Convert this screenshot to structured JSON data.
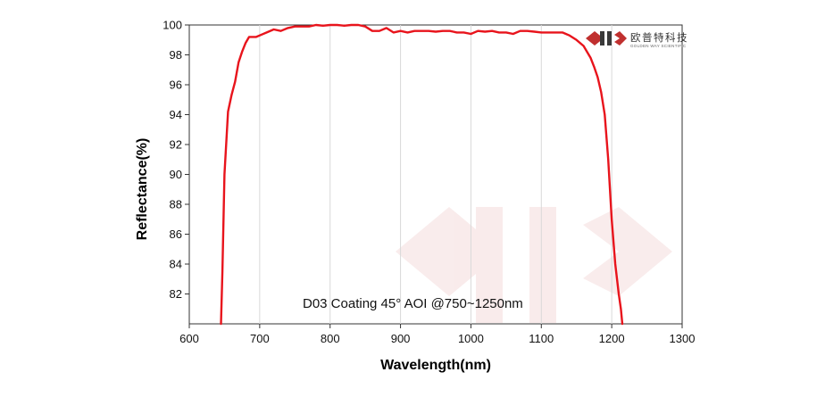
{
  "chart_data": {
    "type": "line",
    "title": "",
    "xlabel": "Wavelength(nm)",
    "ylabel": "Reflectance(%)",
    "xlim": [
      600,
      1300
    ],
    "ylim": [
      80,
      100
    ],
    "xticks": [
      600,
      700,
      800,
      900,
      1000,
      1100,
      1200,
      1300
    ],
    "yticks": [
      82,
      84,
      86,
      88,
      90,
      92,
      94,
      96,
      98,
      100
    ],
    "grid": "vertical",
    "legend": "none",
    "annotation": "D03 Coating  45°  AOI @750~1250nm",
    "series": [
      {
        "color": "#e8141c",
        "x": [
          645,
          647,
          650,
          655,
          660,
          665,
          670,
          675,
          680,
          685,
          690,
          695,
          700,
          710,
          720,
          730,
          740,
          750,
          760,
          770,
          780,
          790,
          800,
          810,
          820,
          830,
          840,
          850,
          860,
          870,
          880,
          890,
          900,
          910,
          920,
          930,
          940,
          950,
          960,
          970,
          980,
          990,
          1000,
          1010,
          1020,
          1030,
          1040,
          1050,
          1060,
          1070,
          1080,
          1090,
          1100,
          1110,
          1120,
          1130,
          1140,
          1150,
          1160,
          1165,
          1170,
          1175,
          1180,
          1185,
          1190,
          1195,
          1200,
          1205,
          1210,
          1213,
          1215
        ],
        "y": [
          80.0,
          83.5,
          90.0,
          94.2,
          95.3,
          96.2,
          97.5,
          98.2,
          98.8,
          99.2,
          99.2,
          99.2,
          99.3,
          99.5,
          99.7,
          99.6,
          99.8,
          99.9,
          99.9,
          99.9,
          100.0,
          99.95,
          100.0,
          100.0,
          99.95,
          100.0,
          100.0,
          99.9,
          99.6,
          99.6,
          99.8,
          99.5,
          99.6,
          99.5,
          99.6,
          99.6,
          99.6,
          99.55,
          99.6,
          99.6,
          99.5,
          99.5,
          99.4,
          99.6,
          99.55,
          99.6,
          99.5,
          99.5,
          99.4,
          99.6,
          99.6,
          99.55,
          99.5,
          99.5,
          99.5,
          99.5,
          99.3,
          99.0,
          98.6,
          98.2,
          97.8,
          97.2,
          96.5,
          95.5,
          94.0,
          91.0,
          87.0,
          84.0,
          82.0,
          81.0,
          80.0
        ]
      }
    ]
  }
}
